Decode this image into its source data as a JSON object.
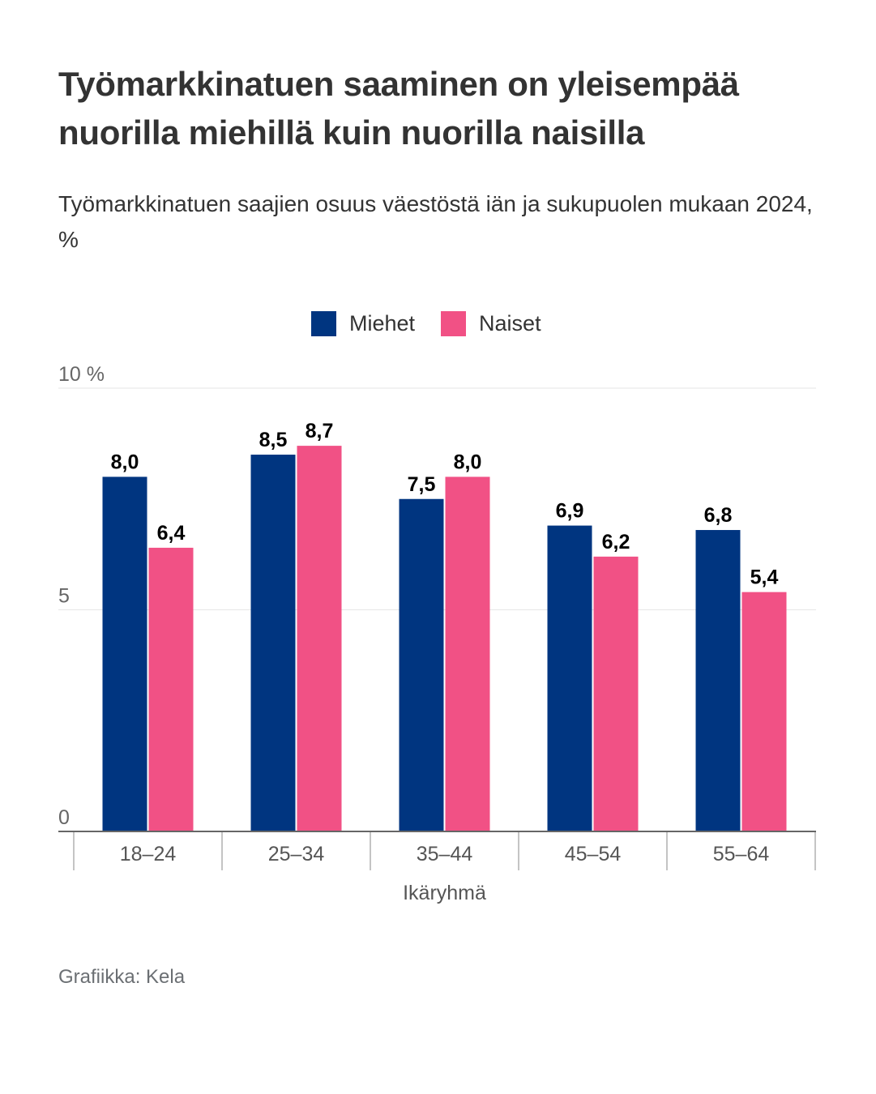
{
  "header": {
    "title": "Työmarkkinatuen saaminen on yleisempää nuorilla miehillä kuin nuorilla naisilla",
    "subtitle": "Työmarkkinatuen saajien osuus väestöstä iän ja sukupuolen mukaan 2024, %"
  },
  "legend": [
    {
      "label": "Miehet",
      "color": "#003580"
    },
    {
      "label": "Naiset",
      "color": "#f15185"
    }
  ],
  "footer": {
    "credit": "Grafiikka: Kela"
  },
  "chart_data": {
    "type": "bar",
    "title": "Työmarkkinatuen saaminen on yleisempää nuorilla miehillä kuin nuorilla naisilla",
    "subtitle": "Työmarkkinatuen saajien osuus väestöstä iän ja sukupuolen mukaan 2024, %",
    "categories": [
      "18–24",
      "25–34",
      "35–44",
      "45–54",
      "55–64"
    ],
    "series": [
      {
        "name": "Miehet",
        "color": "#003580",
        "values": [
          8.0,
          8.5,
          7.5,
          6.9,
          6.8
        ],
        "labels": [
          "8,0",
          "8,5",
          "7,5",
          "6,9",
          "6,8"
        ]
      },
      {
        "name": "Naiset",
        "color": "#f15185",
        "values": [
          6.4,
          8.7,
          8.0,
          6.2,
          5.4
        ],
        "labels": [
          "6,4",
          "8,7",
          "8,0",
          "6,2",
          "5,4"
        ]
      }
    ],
    "xlabel": "Ikäryhmä",
    "ylabel": "",
    "ylim": [
      0,
      10
    ],
    "yticks": [
      0,
      5,
      10
    ],
    "ytick_labels": [
      "0",
      "5",
      "10 %"
    ],
    "grid": true,
    "legend_position": "top-center",
    "source": "Grafiikka: Kela"
  }
}
